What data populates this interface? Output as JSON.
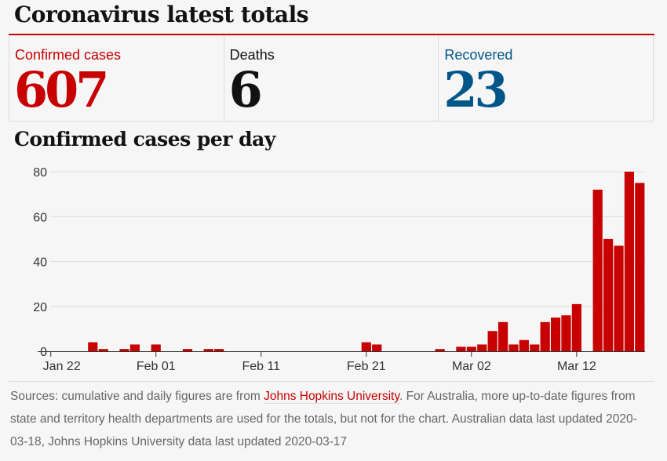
{
  "headline": "Coronavirus latest totals",
  "totals": [
    {
      "label": "Confirmed cases",
      "value": "607",
      "color": "#c70000"
    },
    {
      "label": "Deaths",
      "value": "6",
      "color": "#121212"
    },
    {
      "label": "Recovered",
      "value": "23",
      "color": "#005689"
    }
  ],
  "chart_data": {
    "type": "bar",
    "title": "Confirmed cases per day",
    "x_start": "2020-01-22",
    "x_ticks": [
      "Jan 22",
      "Feb 01",
      "Feb 11",
      "Feb 21",
      "Mar 02",
      "Mar 12"
    ],
    "y_ticks": [
      0,
      20,
      40,
      60,
      80
    ],
    "ylim": [
      0,
      80
    ],
    "grid": true,
    "bar_color": "#c70000",
    "values": [
      0,
      0,
      0,
      0,
      4,
      1,
      0,
      1,
      3,
      0,
      3,
      0,
      0,
      1,
      0,
      1,
      1,
      0,
      0,
      0,
      0,
      0,
      0,
      0,
      0,
      0,
      0,
      0,
      0,
      0,
      4,
      3,
      0,
      0,
      0,
      0,
      0,
      1,
      0,
      2,
      2,
      3,
      9,
      13,
      3,
      5,
      3,
      13,
      15,
      16,
      21,
      0,
      72,
      50,
      47,
      80,
      75
    ]
  },
  "sources": {
    "prefix": "Sources: cumulative and daily figures are from ",
    "link": "Johns Hopkins University",
    "suffix": ". For Australia, more up-to-date figures from state and territory health departments are used for the totals, but not for the chart. Australian data last updated 2020-03-18, Johns Hopkins University data last updated 2020-03-17"
  }
}
